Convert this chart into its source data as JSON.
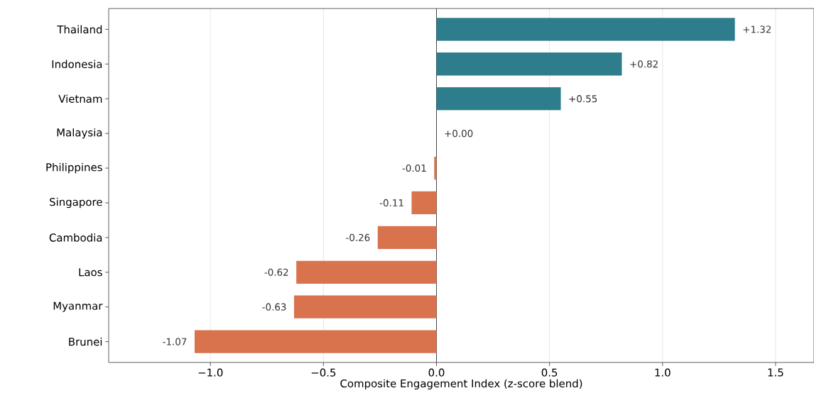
{
  "chart_data": {
    "type": "bar",
    "orientation": "horizontal",
    "categories": [
      "Thailand",
      "Indonesia",
      "Vietnam",
      "Malaysia",
      "Philippines",
      "Singapore",
      "Cambodia",
      "Laos",
      "Myanmar",
      "Brunei"
    ],
    "values": [
      1.32,
      0.82,
      0.55,
      0.0,
      -0.01,
      -0.11,
      -0.26,
      -0.62,
      -0.63,
      -1.07
    ],
    "colors": [
      "#2e7d8c",
      "#2e7d8c",
      "#2e7d8c",
      "#2e7d8c",
      "#d9734e",
      "#d9734e",
      "#d9734e",
      "#d9734e",
      "#d9734e",
      "#d9734e"
    ],
    "value_labels": [
      "+1.32",
      "+0.82",
      "+0.55",
      "+0.00",
      "-0.01",
      "-0.11",
      "-0.26",
      "-0.62",
      "-0.63",
      "-1.07"
    ],
    "xlabel": "Composite Engagement Index (z-score blend)",
    "xlim": [
      -1.45,
      1.67
    ],
    "xticks": [
      {
        "value": -1.0,
        "label": "−1.0"
      },
      {
        "value": -0.5,
        "label": "−0.5"
      },
      {
        "value": 0.0,
        "label": "0.0"
      },
      {
        "value": 0.5,
        "label": "0.5"
      },
      {
        "value": 1.0,
        "label": "1.0"
      },
      {
        "value": 1.5,
        "label": "1.5"
      }
    ],
    "grid": "x",
    "ref_lines": [
      {
        "axis": "x",
        "value": 0,
        "color": "#444444"
      }
    ]
  }
}
